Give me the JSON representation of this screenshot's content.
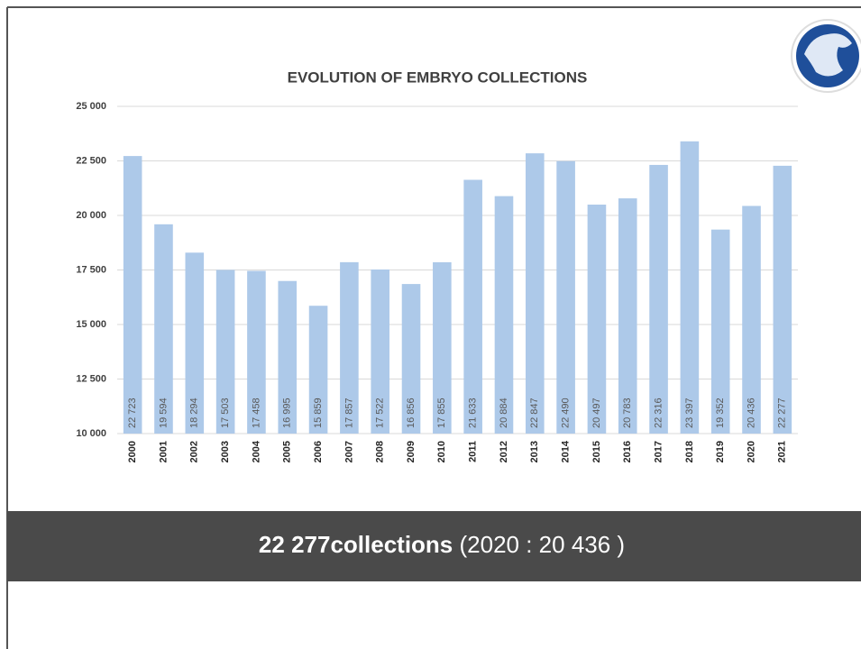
{
  "chart_data": {
    "type": "bar",
    "title": "EVOLUTION OF EMBRYO COLLECTIONS",
    "categories": [
      "2000",
      "2001",
      "2002",
      "2003",
      "2004",
      "2005",
      "2006",
      "2007",
      "2008",
      "2009",
      "2010",
      "2011",
      "2012",
      "2013",
      "2014",
      "2015",
      "2016",
      "2017",
      "2018",
      "2019",
      "2020",
      "2021"
    ],
    "values": [
      22723,
      19594,
      18294,
      17503,
      17458,
      16995,
      15859,
      17857,
      17522,
      16856,
      17855,
      21633,
      20884,
      22847,
      22490,
      20497,
      20783,
      22316,
      23397,
      19352,
      20436,
      22277
    ],
    "value_labels": [
      "22 723",
      "19 594",
      "18 294",
      "17 503",
      "17 458",
      "16 995",
      "15 859",
      "17 857",
      "17 522",
      "16 856",
      "17 855",
      "21 633",
      "20 884",
      "22 847",
      "22 490",
      "20 497",
      "20 783",
      "22 316",
      "23 397",
      "19 352",
      "20 436",
      "22 277"
    ],
    "color": "#adc9e9",
    "ylim": [
      10000,
      25000
    ],
    "yticks": [
      {
        "value": 10000,
        "label": "10 000"
      },
      {
        "value": 12500,
        "label": "12 500"
      },
      {
        "value": 15000,
        "label": "15 000"
      },
      {
        "value": 17500,
        "label": "17 500"
      },
      {
        "value": 20000,
        "label": "20 000"
      },
      {
        "value": 22500,
        "label": "22 500"
      },
      {
        "value": 25000,
        "label": "25 000"
      }
    ],
    "grid": true
  },
  "banner": {
    "highlight": "22 277collections",
    "detail": "(2020 : 20 436 )"
  }
}
